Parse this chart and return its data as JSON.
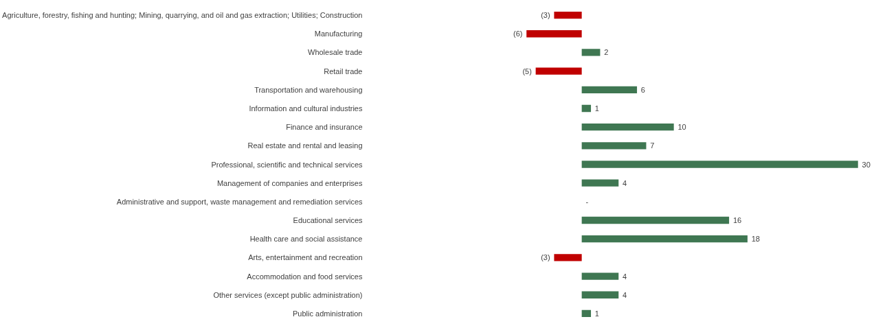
{
  "chart_data": {
    "type": "bar",
    "orientation": "horizontal",
    "categories": [
      "Agriculture, forestry, fishing and hunting; Mining, quarrying, and oil and gas extraction; Utilities; Construction",
      "Manufacturing",
      "Wholesale trade",
      "Retail trade",
      "Transportation and warehousing",
      "Information and cultural industries",
      "Finance and insurance",
      "Real estate and rental and leasing",
      "Professional, scientific and technical services",
      "Management of companies and enterprises",
      "Administrative and support, waste management and remediation services",
      "Educational services",
      "Health care and social assistance",
      "Arts, entertainment and recreation",
      "Accommodation and food services",
      "Other services (except public administration)",
      "Public administration"
    ],
    "values": [
      -3,
      -6,
      2,
      -5,
      6,
      1,
      10,
      7,
      30,
      4,
      0,
      16,
      18,
      -3,
      4,
      4,
      1
    ],
    "value_labels": [
      "(3)",
      "(6)",
      "2",
      "(5)",
      "6",
      "1",
      "10",
      "7",
      "30",
      "4",
      "-",
      "16",
      "18",
      "(3)",
      "4",
      "4",
      "1"
    ],
    "colors": [
      "#c00000",
      "#c00000",
      "#3f7752",
      "#c00000",
      "#3f7752",
      "#3f7752",
      "#3f7752",
      "#3f7752",
      "#3f7752",
      "#3f7752",
      "#3f7752",
      "#3f7752",
      "#3f7752",
      "#c00000",
      "#3f7752",
      "#3f7752",
      "#3f7752"
    ],
    "grid": false
  }
}
